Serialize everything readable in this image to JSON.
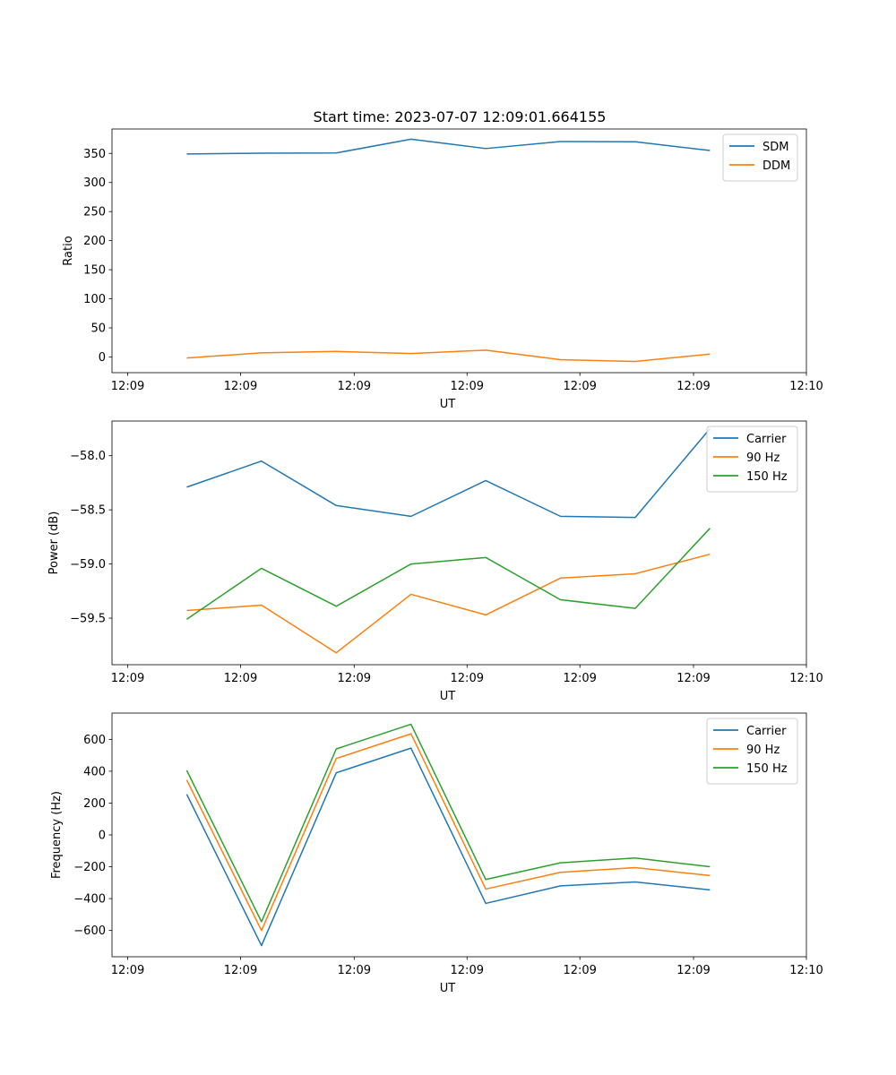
{
  "figure": {
    "title": "Start time: 2023-07-07 12:09:01.664155"
  },
  "chart_data": [
    {
      "type": "line",
      "title": "Start time: 2023-07-07 12:09:01.664155",
      "xlabel": "UT",
      "ylabel": "Ratio",
      "xtick_labels": [
        "12:09",
        "12:09",
        "12:09",
        "12:09",
        "12:09",
        "12:09",
        "12:10"
      ],
      "x": [
        1,
        2,
        3,
        4,
        5,
        6,
        7,
        8
      ],
      "xlim": [
        0,
        9
      ],
      "ylim": [
        -27,
        392
      ],
      "yticks": [
        0,
        50,
        100,
        150,
        200,
        250,
        300,
        350
      ],
      "ytick_labels": [
        "0",
        "50",
        "100",
        "150",
        "200",
        "250",
        "300",
        "350"
      ],
      "legend_position": "top-right",
      "series": [
        {
          "name": "SDM",
          "color": "#1f77b4",
          "values": [
            349,
            350.5,
            350.8,
            374.5,
            358.4,
            370.5,
            370,
            355
          ]
        },
        {
          "name": "DDM",
          "color": "#ff7f0e",
          "values": [
            -1.7,
            7,
            9.5,
            5.9,
            11.7,
            -4.7,
            -7.7,
            4.9
          ]
        }
      ]
    },
    {
      "type": "line",
      "xlabel": "UT",
      "ylabel": "Power (dB)",
      "xtick_labels": [
        "12:09",
        "12:09",
        "12:09",
        "12:09",
        "12:09",
        "12:09",
        "12:10"
      ],
      "x": [
        1,
        2,
        3,
        4,
        5,
        6,
        7,
        8
      ],
      "xlim": [
        0,
        9
      ],
      "ylim": [
        -59.93,
        -57.68
      ],
      "yticks": [
        -59.5,
        -59.0,
        -58.5,
        -58.0
      ],
      "ytick_labels": [
        "−59.5",
        "−59.0",
        "−58.5",
        "−58.0"
      ],
      "legend_position": "top-right",
      "series": [
        {
          "name": "Carrier",
          "color": "#1f77b4",
          "values": [
            -58.29,
            -58.05,
            -58.46,
            -58.56,
            -58.23,
            -58.56,
            -58.57,
            -57.75
          ]
        },
        {
          "name": "90 Hz",
          "color": "#ff7f0e",
          "values": [
            -59.43,
            -59.38,
            -59.82,
            -59.28,
            -59.47,
            -59.13,
            -59.09,
            -58.91
          ]
        },
        {
          "name": "150 Hz",
          "color": "#2ca02c",
          "values": [
            -59.51,
            -59.04,
            -59.39,
            -59.0,
            -58.94,
            -59.33,
            -59.41,
            -58.67
          ]
        }
      ]
    },
    {
      "type": "line",
      "xlabel": "UT",
      "ylabel": "Frequency (Hz)",
      "xtick_labels": [
        "12:09",
        "12:09",
        "12:09",
        "12:09",
        "12:09",
        "12:09",
        "12:10"
      ],
      "x": [
        1,
        2,
        3,
        4,
        5,
        6,
        7,
        8
      ],
      "xlim": [
        0,
        9
      ],
      "ylim": [
        -765,
        765
      ],
      "yticks": [
        -600,
        -400,
        -200,
        0,
        200,
        400,
        600
      ],
      "ytick_labels": [
        "−600",
        "−400",
        "−200",
        "0",
        "200",
        "400",
        "600"
      ],
      "legend_position": "top-right",
      "series": [
        {
          "name": "Carrier",
          "color": "#1f77b4",
          "values": [
            255,
            -695,
            390,
            545,
            -430,
            -320,
            -295,
            -345
          ]
        },
        {
          "name": "90 Hz",
          "color": "#ff7f0e",
          "values": [
            345,
            -600,
            480,
            635,
            -340,
            -235,
            -205,
            -255
          ]
        },
        {
          "name": "150 Hz",
          "color": "#2ca02c",
          "values": [
            405,
            -545,
            540,
            695,
            -280,
            -175,
            -145,
            -200
          ]
        }
      ]
    }
  ]
}
